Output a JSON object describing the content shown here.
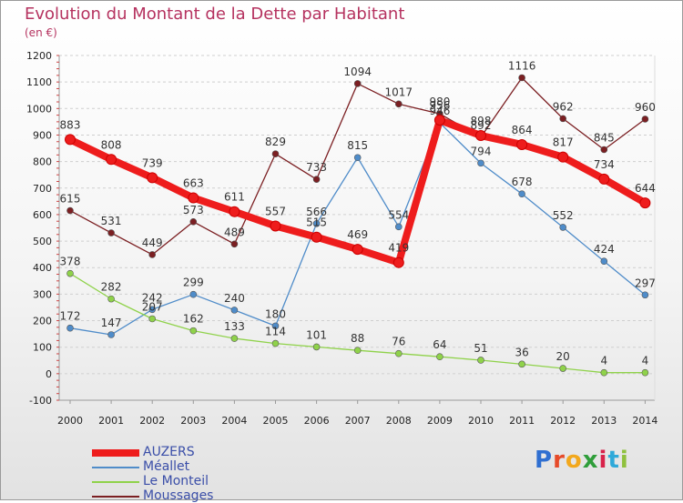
{
  "title": "Evolution du Montant de la Dette par Habitant",
  "unit": "(en €)",
  "logo_text": "Proxiti",
  "chart_data": {
    "type": "line",
    "x": [
      2000,
      2001,
      2002,
      2003,
      2004,
      2005,
      2006,
      2007,
      2008,
      2009,
      2010,
      2011,
      2012,
      2013,
      2014
    ],
    "ylim": [
      -100,
      1200
    ],
    "yticks": [
      -100,
      0,
      100,
      200,
      300,
      400,
      500,
      600,
      700,
      800,
      900,
      1000,
      1100,
      1200
    ],
    "grid": "horizontal dashed",
    "legend_position": "bottom-left",
    "series": [
      {
        "name": "AUZERS",
        "color": "#ee1c1c",
        "values": [
          883,
          808,
          739,
          663,
          611,
          557,
          515,
          469,
          419,
          956,
          898,
          864,
          817,
          734,
          644
        ]
      },
      {
        "name": "Méallet",
        "color": "#4f8cc9",
        "values": [
          172,
          147,
          242,
          299,
          240,
          180,
          566,
          815,
          554,
          946,
          794,
          678,
          552,
          424,
          297
        ]
      },
      {
        "name": "Le Monteil",
        "color": "#8fd24a",
        "values": [
          378,
          282,
          207,
          162,
          133,
          114,
          101,
          88,
          76,
          64,
          51,
          36,
          20,
          4,
          4
        ]
      },
      {
        "name": "Moussages",
        "color": "#7b1f22",
        "values": [
          615,
          531,
          449,
          573,
          489,
          829,
          733,
          1094,
          1017,
          980,
          892,
          1116,
          962,
          845,
          960
        ]
      }
    ]
  }
}
